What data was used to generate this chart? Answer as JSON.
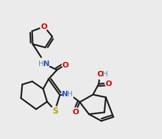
{
  "bg_color": "#ebebeb",
  "bond_color": "#1a1a1a",
  "N_color": "#3050c0",
  "O_color": "#cc0000",
  "S_color": "#b8a000",
  "H_color": "#5090a0",
  "line_width": 1.6
}
